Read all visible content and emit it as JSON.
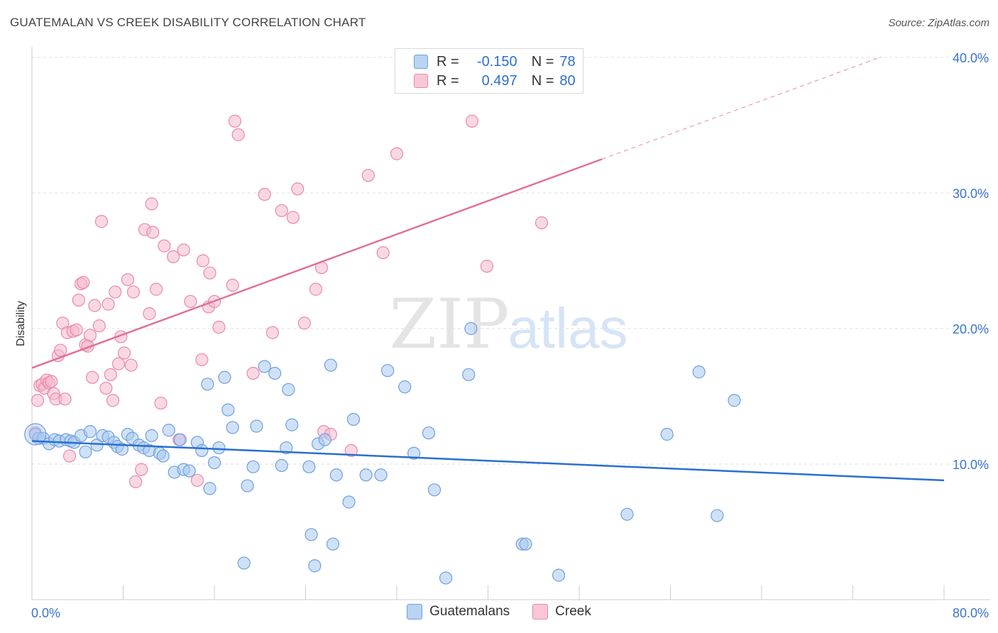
{
  "header": {
    "title": "GUATEMALAN VS CREEK DISABILITY CORRELATION CHART",
    "source": "Source: ZipAtlas.com"
  },
  "watermark": {
    "zip": "ZIP",
    "atlas": "atlas"
  },
  "legend": {
    "rows": [
      {
        "r_label": "R =",
        "r_value": "-0.150",
        "n_label": "N =",
        "n_value": "78"
      },
      {
        "r_label": "R =",
        "r_value": "0.497",
        "n_label": "N =",
        "n_value": "80"
      }
    ]
  },
  "bottom_legend": {
    "items": [
      "Guatemalans",
      "Creek"
    ]
  },
  "colors": {
    "blue_fill": "#a8c8f0",
    "blue_stroke": "#6fa0de",
    "blue_line": "#2a6fcf",
    "pink_fill": "#f5b8cc",
    "pink_stroke": "#e88aa8",
    "pink_line": "#e0709a",
    "axis_text": "#3a74d0",
    "grid": "#dddddd"
  },
  "chart_data": {
    "type": "scatter",
    "title": "GUATEMALAN VS CREEK DISABILITY CORRELATION CHART",
    "xlabel": "",
    "ylabel": "Disability",
    "xlim": [
      0,
      80
    ],
    "ylim": [
      0,
      40
    ],
    "x_tick_labels": [
      "0.0%",
      "80.0%"
    ],
    "y_ticks": [
      10,
      20,
      30,
      40
    ],
    "y_tick_labels": [
      "10.0%",
      "20.0%",
      "30.0%",
      "40.0%"
    ],
    "grid": true,
    "legend_position": "top-center",
    "series": [
      {
        "name": "Guatemalans",
        "r": -0.15,
        "n": 78,
        "trend": {
          "x": [
            0,
            80
          ],
          "y": [
            11.7,
            8.8
          ]
        },
        "points": [
          [
            0.3,
            12.2
          ],
          [
            0.6,
            11.9
          ],
          [
            1,
            11.9
          ],
          [
            1.5,
            11.5
          ],
          [
            2,
            11.8
          ],
          [
            2.4,
            11.7
          ],
          [
            3,
            11.8
          ],
          [
            3.4,
            11.7
          ],
          [
            3.7,
            11.6
          ],
          [
            4.3,
            12.1
          ],
          [
            4.7,
            10.9
          ],
          [
            5.1,
            12.4
          ],
          [
            5.7,
            11.4
          ],
          [
            6.2,
            12.1
          ],
          [
            6.7,
            12
          ],
          [
            7.2,
            11.6
          ],
          [
            7.5,
            11.3
          ],
          [
            7.9,
            11.1
          ],
          [
            8.4,
            12.2
          ],
          [
            8.8,
            11.9
          ],
          [
            9.4,
            11.4
          ],
          [
            9.8,
            11.2
          ],
          [
            10.3,
            11
          ],
          [
            10.5,
            12.1
          ],
          [
            11.2,
            10.8
          ],
          [
            11.5,
            10.6
          ],
          [
            12,
            12.5
          ],
          [
            12.5,
            9.4
          ],
          [
            13,
            11.8
          ],
          [
            13.3,
            9.6
          ],
          [
            13.8,
            9.5
          ],
          [
            14.5,
            11.6
          ],
          [
            14.9,
            11
          ],
          [
            15.4,
            15.9
          ],
          [
            15.6,
            8.2
          ],
          [
            16,
            10.1
          ],
          [
            16.4,
            11.2
          ],
          [
            16.9,
            16.4
          ],
          [
            17.2,
            14
          ],
          [
            17.6,
            12.7
          ],
          [
            18.6,
            2.7
          ],
          [
            18.9,
            8.4
          ],
          [
            19.4,
            9.8
          ],
          [
            19.7,
            12.8
          ],
          [
            20.4,
            17.2
          ],
          [
            21.3,
            16.7
          ],
          [
            21.9,
            9.9
          ],
          [
            22.3,
            11.2
          ],
          [
            22.5,
            15.5
          ],
          [
            22.8,
            12.9
          ],
          [
            24.3,
            9.8
          ],
          [
            24.5,
            4.8
          ],
          [
            24.8,
            2.5
          ],
          [
            25.1,
            11.5
          ],
          [
            25.7,
            11.8
          ],
          [
            26.2,
            17.3
          ],
          [
            26.4,
            4.1
          ],
          [
            26.7,
            9.2
          ],
          [
            27.8,
            7.2
          ],
          [
            28.2,
            13.3
          ],
          [
            29.3,
            9.2
          ],
          [
            30.6,
            9.2
          ],
          [
            31.2,
            16.9
          ],
          [
            32.7,
            15.7
          ],
          [
            33.5,
            10.8
          ],
          [
            34.8,
            12.3
          ],
          [
            35.3,
            8.1
          ],
          [
            36.3,
            1.6
          ],
          [
            38.3,
            16.6
          ],
          [
            38.5,
            20
          ],
          [
            43,
            4.1
          ],
          [
            43.3,
            4.1
          ],
          [
            46.2,
            1.8
          ],
          [
            52.2,
            6.3
          ],
          [
            55.7,
            12.2
          ],
          [
            58.5,
            16.8
          ],
          [
            60.1,
            6.2
          ],
          [
            61.6,
            14.7
          ]
        ]
      },
      {
        "name": "Creek",
        "r": 0.497,
        "n": 80,
        "trend": {
          "x": [
            0,
            50
          ],
          "y": [
            17.1,
            32.5
          ]
        },
        "points": [
          [
            0.3,
            12.3
          ],
          [
            0.5,
            14.7
          ],
          [
            0.7,
            15.8
          ],
          [
            0.9,
            15.9
          ],
          [
            1.1,
            15.6
          ],
          [
            1.3,
            16.2
          ],
          [
            1.5,
            16
          ],
          [
            1.7,
            16.1
          ],
          [
            1.9,
            15.2
          ],
          [
            2.1,
            14.8
          ],
          [
            2.3,
            18
          ],
          [
            2.5,
            18.4
          ],
          [
            2.7,
            20.4
          ],
          [
            2.9,
            14.8
          ],
          [
            3.1,
            19.7
          ],
          [
            3.3,
            10.6
          ],
          [
            3.6,
            19.8
          ],
          [
            3.9,
            19.9
          ],
          [
            4.1,
            22.1
          ],
          [
            4.3,
            23.3
          ],
          [
            4.5,
            23.4
          ],
          [
            4.7,
            18.8
          ],
          [
            4.9,
            18.7
          ],
          [
            5.1,
            19.5
          ],
          [
            5.3,
            16.4
          ],
          [
            5.5,
            21.7
          ],
          [
            5.9,
            20.2
          ],
          [
            6.1,
            27.9
          ],
          [
            6.5,
            15.6
          ],
          [
            6.7,
            21.8
          ],
          [
            6.9,
            16.6
          ],
          [
            7.1,
            14.7
          ],
          [
            7.3,
            22.7
          ],
          [
            7.6,
            17.4
          ],
          [
            7.8,
            19.4
          ],
          [
            8.1,
            18.2
          ],
          [
            8.4,
            23.6
          ],
          [
            8.7,
            17.3
          ],
          [
            8.9,
            22.7
          ],
          [
            9.1,
            8.7
          ],
          [
            9.6,
            9.6
          ],
          [
            9.9,
            27.3
          ],
          [
            10.3,
            21.1
          ],
          [
            10.5,
            29.2
          ],
          [
            10.6,
            27.1
          ],
          [
            10.9,
            22.9
          ],
          [
            11.3,
            14.5
          ],
          [
            11.6,
            26.1
          ],
          [
            12.4,
            25.3
          ],
          [
            12.9,
            11.8
          ],
          [
            13.3,
            25.8
          ],
          [
            13.9,
            22
          ],
          [
            14.5,
            8.8
          ],
          [
            14.9,
            17.7
          ],
          [
            15,
            25
          ],
          [
            15.5,
            21.6
          ],
          [
            15.6,
            24.1
          ],
          [
            16,
            22
          ],
          [
            16.4,
            20.1
          ],
          [
            17.6,
            23.2
          ],
          [
            17.8,
            35.3
          ],
          [
            18.1,
            34.3
          ],
          [
            19.4,
            16.7
          ],
          [
            20.4,
            29.9
          ],
          [
            21.1,
            19.7
          ],
          [
            21.9,
            28.7
          ],
          [
            22.9,
            28.2
          ],
          [
            23.3,
            30.3
          ],
          [
            23.9,
            20.4
          ],
          [
            24.9,
            22.9
          ],
          [
            25.4,
            24.5
          ],
          [
            25.6,
            12.4
          ],
          [
            26.2,
            12.2
          ],
          [
            28,
            11
          ],
          [
            29.5,
            31.3
          ],
          [
            30.8,
            25.6
          ],
          [
            32,
            32.9
          ],
          [
            38.6,
            35.3
          ],
          [
            39.9,
            24.6
          ],
          [
            44.7,
            27.8
          ]
        ]
      }
    ]
  }
}
